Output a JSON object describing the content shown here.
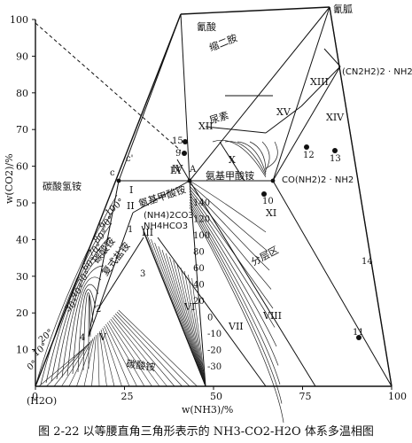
{
  "caption": "图 2-22  以等腰直角三角形表示的 NH3-CO2-H2O 体系多温相图",
  "axes": {
    "ylabel": "w(CO2)/%",
    "xlabel": "w(NH3)/%",
    "x_ticks": [
      "0",
      "25",
      "50",
      "75",
      "100"
    ],
    "y_ticks": [
      "10",
      "20",
      "30",
      "40",
      "50",
      "60",
      "70",
      "80",
      "90",
      "100"
    ],
    "origin_label": "(H2O)"
  },
  "compounds": {
    "cyanic_acid": "氰酸",
    "cyanamide": "氰胍",
    "biuret": "缩二胺",
    "urea": "尿素",
    "ammonium_bicarbonate": "碳酸氢铵",
    "ammonium_carbamate": "氨基甲酸铵",
    "carbamate_salt": "氨基甲酸铵",
    "ammonium_carbonate_formula": "(NH4)2CO3",
    "ammonium_bicarbonate_formula": "NH4HCO3",
    "sesquicarbonate": "碳酸铵",
    "double_salt": "复式盐铵",
    "ammonium_carbonate": "碳酸铵",
    "urea_formula": "CO(NH2)2 · NH2",
    "dicyandiamide_formula": "(CN2H2)2 · NH2",
    "layer_region": "分层区"
  },
  "regions": [
    "I",
    "II",
    "III",
    "IV",
    "V",
    "VI",
    "VII",
    "VIII",
    "IX",
    "X",
    "XI",
    "XII",
    "XIII",
    "XIV",
    "XV"
  ],
  "points": [
    "c",
    "c'",
    "A",
    "1",
    "2",
    "3",
    "4",
    "9",
    "10",
    "11",
    "12",
    "13",
    "14",
    "15"
  ],
  "isotherms_left": [
    "100°",
    "90°",
    "80°",
    "70°",
    "60°",
    "50°",
    "40°",
    "30°",
    "20°",
    "10°",
    "0°"
  ],
  "isotherms_right": [
    "140",
    "120",
    "100",
    "80",
    "60",
    "40",
    "20",
    "0",
    "-10",
    "-20",
    "-30"
  ]
}
